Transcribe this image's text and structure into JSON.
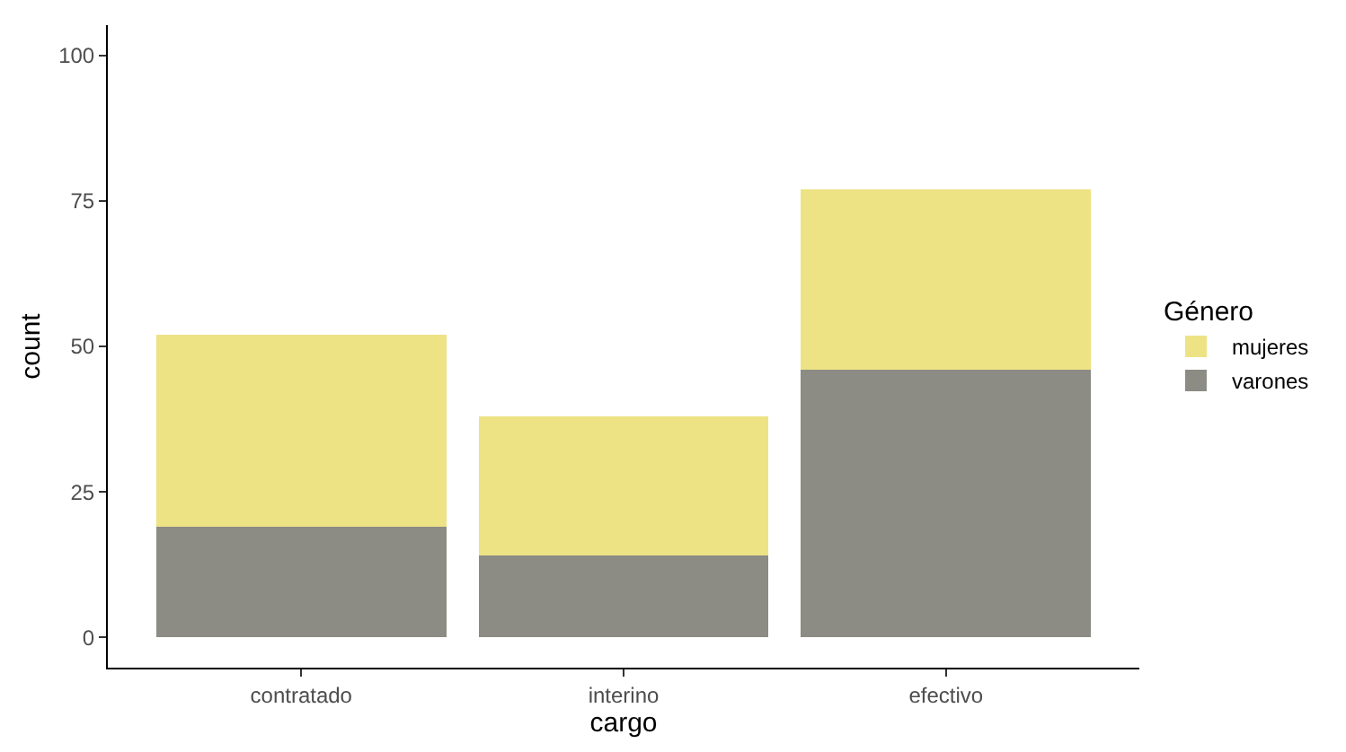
{
  "chart_data": {
    "type": "bar",
    "stacked": true,
    "xlabel": "cargo",
    "ylabel": "count",
    "legend_title": "Género",
    "legend": "right",
    "categories": [
      "contratado",
      "interino",
      "efectivo"
    ],
    "series": [
      {
        "name": "varones",
        "color": "#8c8b84",
        "values": [
          19,
          14,
          46
        ]
      },
      {
        "name": "mujeres",
        "color": "#ede385",
        "values": [
          33,
          24,
          31
        ]
      }
    ],
    "ylim": [
      -5.2,
      105.2
    ],
    "yticks": [
      0,
      25,
      50,
      75,
      100
    ]
  }
}
